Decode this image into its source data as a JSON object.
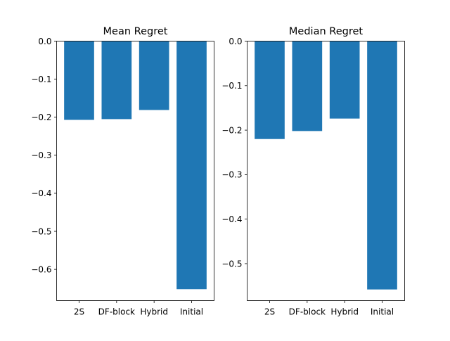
{
  "chart_data": [
    {
      "type": "bar",
      "title": "Mean Regret",
      "xlabel": "",
      "ylabel": "",
      "categories": [
        "2S",
        "DF-block",
        "Hybrid",
        "Initial"
      ],
      "values": [
        -0.207,
        -0.205,
        -0.181,
        -0.652
      ],
      "ylim": [
        -0.682,
        0.0
      ],
      "yticks": [
        0.0,
        -0.1,
        -0.2,
        -0.3,
        -0.4,
        -0.5,
        -0.6
      ],
      "ytick_labels": [
        "0.0",
        "−0.1",
        "−0.2",
        "−0.3",
        "−0.4",
        "−0.5",
        "−0.6"
      ],
      "bar_color": "#1f77b4",
      "grid": false,
      "legend": "none"
    },
    {
      "type": "bar",
      "title": "Median Regret",
      "xlabel": "",
      "ylabel": "",
      "categories": [
        "2S",
        "DF-block",
        "Hybrid",
        "Initial"
      ],
      "values": [
        -0.22,
        -0.202,
        -0.174,
        -0.558
      ],
      "ylim": [
        -0.583,
        0.0
      ],
      "yticks": [
        0.0,
        -0.1,
        -0.2,
        -0.3,
        -0.4,
        -0.5
      ],
      "ytick_labels": [
        "0.0",
        "−0.1",
        "−0.2",
        "−0.3",
        "−0.4",
        "−0.5"
      ],
      "bar_color": "#1f77b4",
      "grid": false,
      "legend": "none"
    }
  ]
}
